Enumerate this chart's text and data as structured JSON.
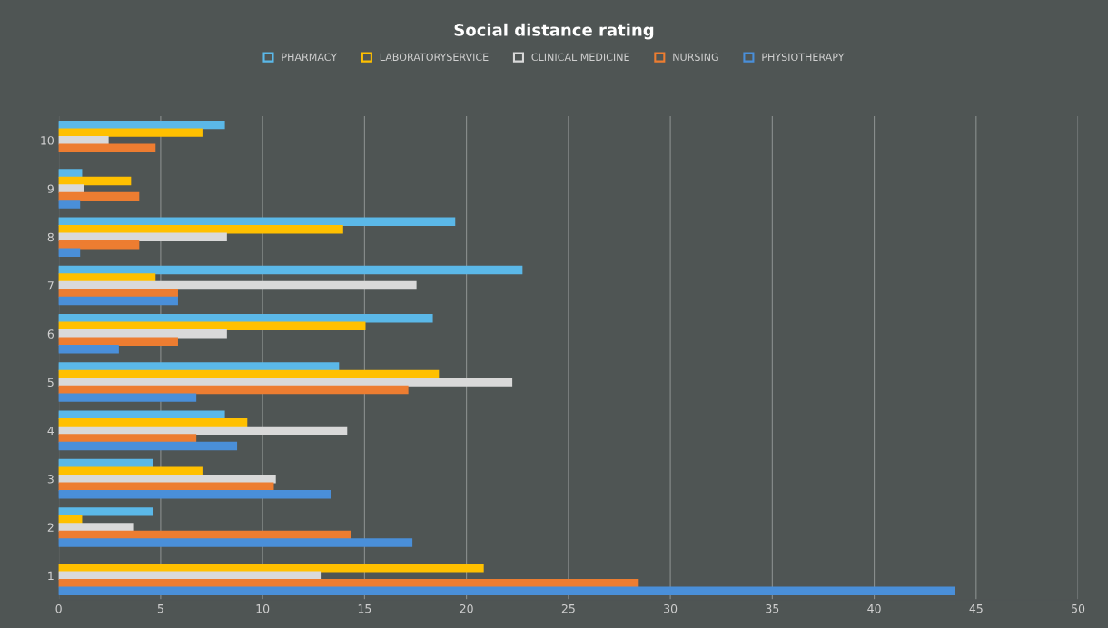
{
  "chart_data": {
    "type": "bar",
    "orientation": "horizontal",
    "title": "Social distance rating",
    "categories": [
      "10",
      "9",
      "8",
      "7",
      "6",
      "5",
      "4",
      "3",
      "2",
      "1"
    ],
    "series": [
      {
        "name": "PHARMACY",
        "color": "#5bb8e8",
        "values": [
          8.1,
          1.1,
          19.4,
          22.7,
          18.3,
          13.7,
          8.1,
          4.6,
          4.6,
          null
        ]
      },
      {
        "name": "LABORATORYSERVICE",
        "color": "#ffc000",
        "values": [
          7.0,
          3.5,
          13.9,
          4.7,
          15.0,
          18.6,
          9.2,
          7.0,
          1.1,
          20.8
        ]
      },
      {
        "name": "CLINICAL MEDICINE",
        "color": "#d9d9d9",
        "values": [
          2.4,
          1.2,
          8.2,
          17.5,
          8.2,
          22.2,
          14.1,
          10.6,
          3.6,
          12.8
        ]
      },
      {
        "name": "NURSING",
        "color": "#ed7d31",
        "values": [
          4.7,
          3.9,
          3.9,
          5.8,
          5.8,
          17.1,
          6.7,
          10.5,
          14.3,
          28.4
        ]
      },
      {
        "name": "PHYSIOTHERAPY",
        "color": "#4a8fd9",
        "values": [
          null,
          1.0,
          1.0,
          5.8,
          2.9,
          6.7,
          8.7,
          13.3,
          17.3,
          43.9
        ]
      }
    ],
    "xlim": [
      0,
      50
    ],
    "xticks": [
      0,
      5,
      10,
      15,
      20,
      25,
      30,
      35,
      40,
      45,
      50
    ],
    "grid": "x",
    "legend": "top"
  }
}
